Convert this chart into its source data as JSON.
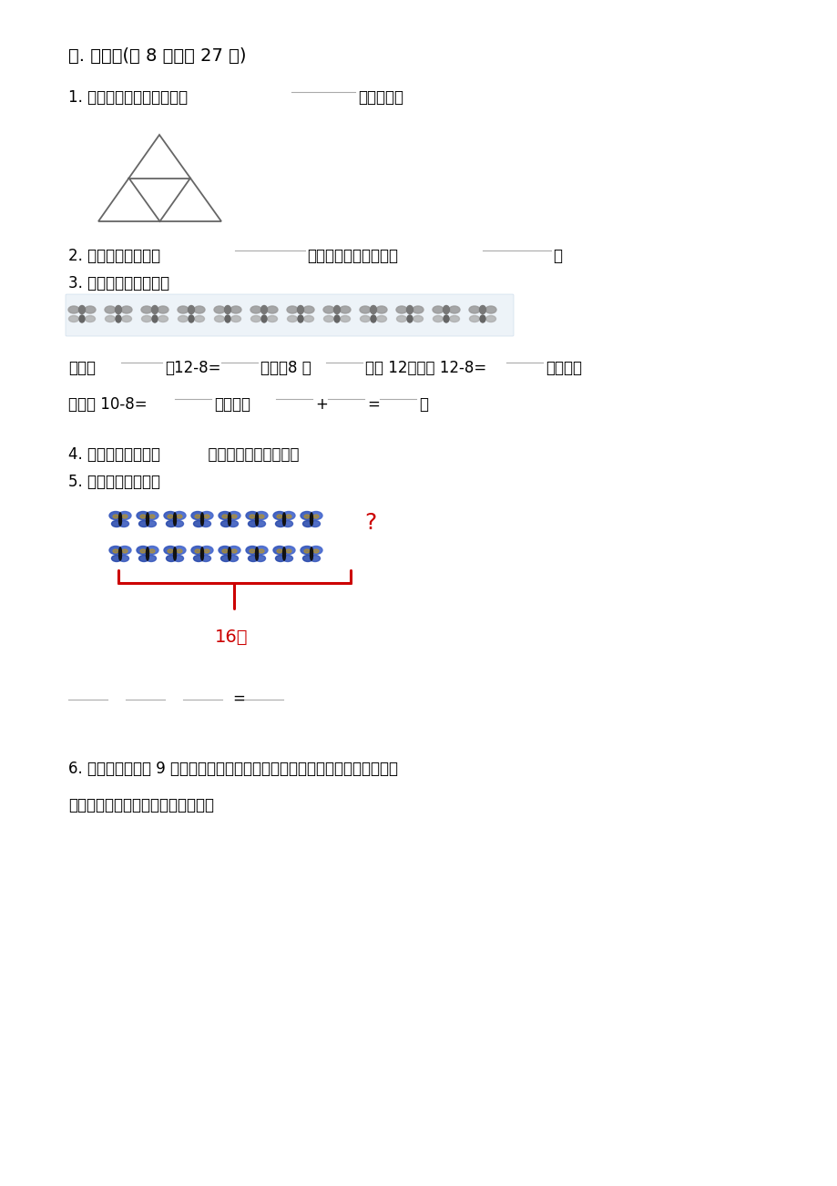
{
  "bg_color": "#ffffff",
  "title": "三. 填空题(共 8 题，共 27 分)",
  "q1_a": "1. 下图中有多少个三角形。",
  "q1_b": "个三角形。",
  "q2_a": "2. 魔方的每个面都是",
  "q2_b": "形，正方形的四条边都",
  "q2_c": "。",
  "q3": "3. 先圈一圈，再计算。",
  "q3_line1_a": "圈一圈",
  "q3_line1_b": "，12-8=",
  "q3_line1_c": "。想：8 加",
  "q3_line1_d": "等于 12，所以 12-8=",
  "q3_line1_e": "；也可以",
  "q3_line2_a": "先计算 10-8=",
  "q3_line2_b": "，再计算",
  "q3_line2_c": "+",
  "q3_line2_d": "=",
  "q3_line2_e": "。",
  "q4": "4. 数学书的封面是（          ）。（填图形的名字）",
  "q5": "5. 看一看，填一填。",
  "q5_label": "16个",
  "q5_question": "?",
  "q6_line1": "6. 如图，平面上有 9 个点，任意相邻两点之间的距离都相等，若把其中任意几",
  "q6_line2": "个点连接起来，可以得到各种图形。",
  "text_color": "#000000",
  "red_color": "#cc0000",
  "underline_color": "#aaaaaa"
}
